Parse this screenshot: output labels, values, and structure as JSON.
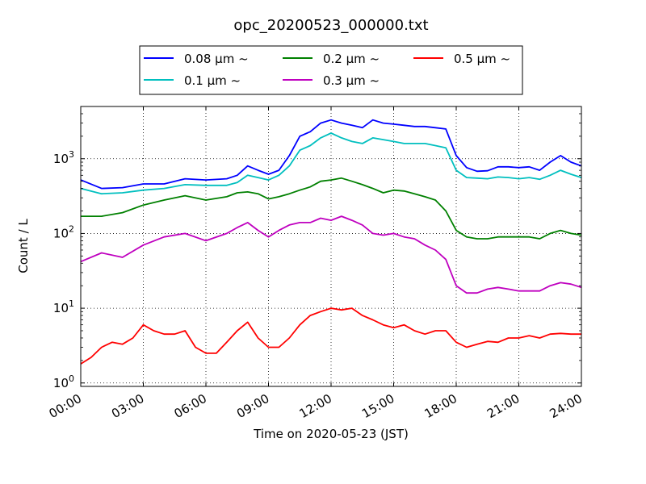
{
  "chart_data": {
    "type": "line",
    "title": "opc_20200523_000000.txt",
    "xlabel": "Time on 2020-05-23 (JST)",
    "ylabel": "Count / L",
    "y_scale": "log",
    "x_unit": "hour",
    "xlim": [
      0,
      24
    ],
    "ylim": [
      0.9,
      5000
    ],
    "x_ticks": [
      "00:00",
      "03:00",
      "06:00",
      "09:00",
      "12:00",
      "15:00",
      "18:00",
      "21:00",
      "24:00"
    ],
    "y_ticks": [
      {
        "value": 1,
        "base": "10",
        "exp": "0"
      },
      {
        "value": 10,
        "base": "10",
        "exp": "1"
      },
      {
        "value": 100,
        "base": "10",
        "exp": "2"
      },
      {
        "value": 1000,
        "base": "10",
        "exp": "3"
      }
    ],
    "grid": true,
    "legend_position": "top-center",
    "series": [
      {
        "name": "0.08 μm ~",
        "color": "#0000ff",
        "x": [
          0,
          1,
          2,
          3,
          4,
          5,
          6,
          7,
          7.5,
          8,
          8.5,
          9,
          9.5,
          10,
          10.5,
          11,
          11.5,
          12,
          12.5,
          13,
          13.5,
          14,
          14.5,
          15,
          15.5,
          16,
          16.5,
          17,
          17.5,
          18,
          18.5,
          19,
          19.5,
          20,
          20.5,
          21,
          21.5,
          22,
          22.5,
          23,
          23.5,
          24
        ],
        "y": [
          520,
          400,
          410,
          460,
          460,
          540,
          520,
          540,
          600,
          800,
          700,
          620,
          700,
          1100,
          2000,
          2300,
          3000,
          3300,
          3000,
          2800,
          2600,
          3300,
          3000,
          2900,
          2800,
          2700,
          2700,
          2600,
          2500,
          1100,
          760,
          680,
          690,
          780,
          780,
          760,
          780,
          700,
          900,
          1100,
          900,
          800
        ]
      },
      {
        "name": "0.1 μm ~",
        "color": "#00bfbf",
        "x": [
          0,
          1,
          2,
          3,
          4,
          5,
          6,
          7,
          7.5,
          8,
          8.5,
          9,
          9.5,
          10,
          10.5,
          11,
          11.5,
          12,
          12.5,
          13,
          13.5,
          14,
          14.5,
          15,
          15.5,
          16,
          16.5,
          17,
          17.5,
          18,
          18.5,
          19,
          19.5,
          20,
          20.5,
          21,
          21.5,
          22,
          22.5,
          23,
          23.5,
          24
        ],
        "y": [
          400,
          340,
          350,
          380,
          400,
          450,
          440,
          440,
          480,
          600,
          560,
          520,
          600,
          800,
          1300,
          1500,
          1900,
          2200,
          1900,
          1700,
          1600,
          1900,
          1800,
          1700,
          1600,
          1600,
          1600,
          1500,
          1400,
          700,
          560,
          550,
          540,
          570,
          560,
          540,
          560,
          530,
          600,
          700,
          620,
          560
        ]
      },
      {
        "name": "0.2 μm ~",
        "color": "#008000",
        "x": [
          0,
          1,
          2,
          3,
          4,
          5,
          6,
          7,
          7.5,
          8,
          8.5,
          9,
          9.5,
          10,
          10.5,
          11,
          11.5,
          12,
          12.5,
          13,
          13.5,
          14,
          14.5,
          15,
          15.5,
          16,
          16.5,
          17,
          17.5,
          18,
          18.5,
          19,
          19.5,
          20,
          20.5,
          21,
          21.5,
          22,
          22.5,
          23,
          23.5,
          24
        ],
        "y": [
          170,
          170,
          190,
          240,
          280,
          320,
          280,
          310,
          350,
          360,
          340,
          290,
          310,
          340,
          380,
          420,
          500,
          520,
          550,
          500,
          450,
          400,
          350,
          380,
          370,
          340,
          310,
          280,
          200,
          110,
          90,
          85,
          85,
          90,
          90,
          90,
          90,
          85,
          100,
          110,
          100,
          95
        ]
      },
      {
        "name": "0.3 μm ~",
        "color": "#bf00bf",
        "x": [
          0,
          1,
          2,
          3,
          4,
          5,
          6,
          7,
          7.5,
          8,
          8.5,
          9,
          9.5,
          10,
          10.5,
          11,
          11.5,
          12,
          12.5,
          13,
          13.5,
          14,
          14.5,
          15,
          15.5,
          16,
          16.5,
          17,
          17.5,
          18,
          18.5,
          19,
          19.5,
          20,
          20.5,
          21,
          21.5,
          22,
          22.5,
          23,
          23.5,
          24
        ],
        "y": [
          42,
          55,
          48,
          70,
          90,
          100,
          80,
          100,
          120,
          140,
          110,
          90,
          110,
          130,
          140,
          140,
          160,
          150,
          170,
          150,
          130,
          100,
          95,
          100,
          90,
          85,
          70,
          60,
          45,
          20,
          16,
          16,
          18,
          19,
          18,
          17,
          17,
          17,
          20,
          22,
          21,
          19
        ]
      },
      {
        "name": "0.5 μm ~",
        "color": "#ff0000",
        "x": [
          0,
          0.5,
          1,
          1.5,
          2,
          2.5,
          3,
          3.5,
          4,
          4.5,
          5,
          5.5,
          6,
          6.5,
          7,
          7.5,
          8,
          8.5,
          9,
          9.5,
          10,
          10.5,
          11,
          11.5,
          12,
          12.5,
          13,
          13.5,
          14,
          14.5,
          15,
          15.5,
          16,
          16.5,
          17,
          17.5,
          18,
          18.5,
          19,
          19.5,
          20,
          20.5,
          21,
          21.5,
          22,
          22.5,
          23,
          23.5,
          24
        ],
        "y": [
          1.8,
          2.2,
          3.0,
          3.5,
          3.3,
          4.0,
          6.0,
          5.0,
          4.5,
          4.5,
          5.0,
          3.0,
          2.5,
          2.5,
          3.5,
          5.0,
          6.5,
          4.0,
          3.0,
          3.0,
          4.0,
          6.0,
          8.0,
          9.0,
          10.0,
          9.5,
          10.0,
          8.0,
          7.0,
          6.0,
          5.5,
          6.0,
          5.0,
          4.5,
          5.0,
          5.0,
          3.5,
          3.0,
          3.3,
          3.6,
          3.5,
          4.0,
          4.0,
          4.3,
          4.0,
          4.5,
          4.6,
          4.5,
          4.5
        ]
      }
    ]
  }
}
